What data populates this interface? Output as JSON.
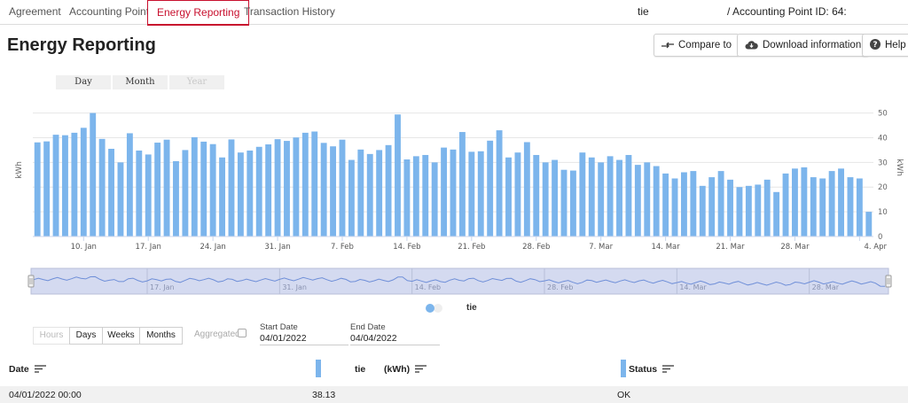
{
  "tabs": [
    {
      "label": "Agreement"
    },
    {
      "label": "Accounting Point"
    },
    {
      "label": "Energy Reporting"
    },
    {
      "label": "Transaction History"
    }
  ],
  "account": {
    "customer": "tie",
    "accounting_point": "/ Accounting Point ID: 64:"
  },
  "page_title": "Energy Reporting",
  "header_buttons": {
    "compare": "Compare to",
    "download": "Download information",
    "help": "Help"
  },
  "period_buttons": [
    "Day",
    "Month",
    "Year"
  ],
  "chart_data": {
    "type": "bar",
    "y_axis_label": "kWh",
    "y_axis_label_right": "kWh",
    "ylim": [
      0,
      52
    ],
    "yticks": [
      0,
      10,
      20,
      30,
      40,
      50
    ],
    "xtick_labels": [
      "10. Jan",
      "17. Jan",
      "24. Jan",
      "31. Jan",
      "7. Feb",
      "14. Feb",
      "21. Feb",
      "28. Feb",
      "7. Mar",
      "14. Mar",
      "21. Mar",
      "28. Mar",
      "4. Apr"
    ],
    "xtick_bar_index": [
      5,
      12,
      19,
      26,
      33,
      40,
      47,
      54,
      61,
      68,
      75,
      82,
      89
    ],
    "navigator_labels": [
      "17. Jan",
      "31. Jan",
      "14. Feb",
      "28. Feb",
      "14. Mar",
      "28. Mar"
    ],
    "navigator_bar_index": [
      12,
      26,
      40,
      54,
      68,
      82
    ],
    "series": [
      {
        "name": "tie",
        "color": "#7cb5ec",
        "values": [
          38.1,
          38.5,
          41.2,
          41.0,
          42.0,
          44.0,
          50.0,
          39.5,
          35.5,
          30.0,
          41.8,
          34.8,
          33.2,
          38.0,
          39.2,
          30.5,
          35.0,
          40.2,
          38.4,
          37.4,
          32.0,
          39.3,
          34.0,
          34.8,
          36.3,
          37.3,
          39.4,
          38.7,
          40.1,
          42.0,
          42.5,
          37.9,
          36.5,
          39.2,
          31.0,
          35.2,
          33.4,
          35.0,
          37.0,
          49.4,
          31.2,
          32.5,
          33.0,
          30.0,
          36.0,
          35.2,
          42.3,
          34.3,
          34.5,
          38.8,
          43.0,
          32.0,
          34.0,
          38.2,
          33.0,
          30.0,
          31.0,
          27.0,
          26.7,
          34.0,
          32.0,
          30.0,
          32.5,
          31.0,
          33.0,
          29.0,
          30.0,
          28.5,
          25.5,
          23.5,
          26.0,
          26.5,
          20.5,
          24.0,
          26.5,
          23.0,
          20.0,
          20.5,
          21.0,
          23.0,
          18.0,
          25.5,
          27.5,
          28.0,
          24.0,
          23.5,
          26.5,
          27.5,
          24.0,
          23.5,
          10.0
        ]
      }
    ]
  },
  "legend": {
    "series_name": "tie"
  },
  "resolution_buttons": [
    "Hours",
    "Days",
    "Weeks",
    "Months"
  ],
  "aggregated_label": "Aggregated",
  "start_date": {
    "label": "Start Date",
    "value": "04/01/2022"
  },
  "end_date": {
    "label": "End Date",
    "value": "04/04/2022"
  },
  "table": {
    "headers": {
      "date": "Date",
      "series": "tie",
      "unit": "(kWh)",
      "status": "Status"
    },
    "rows": [
      {
        "date": "04/01/2022 00:00",
        "value": "38.13",
        "status": "OK"
      }
    ]
  }
}
